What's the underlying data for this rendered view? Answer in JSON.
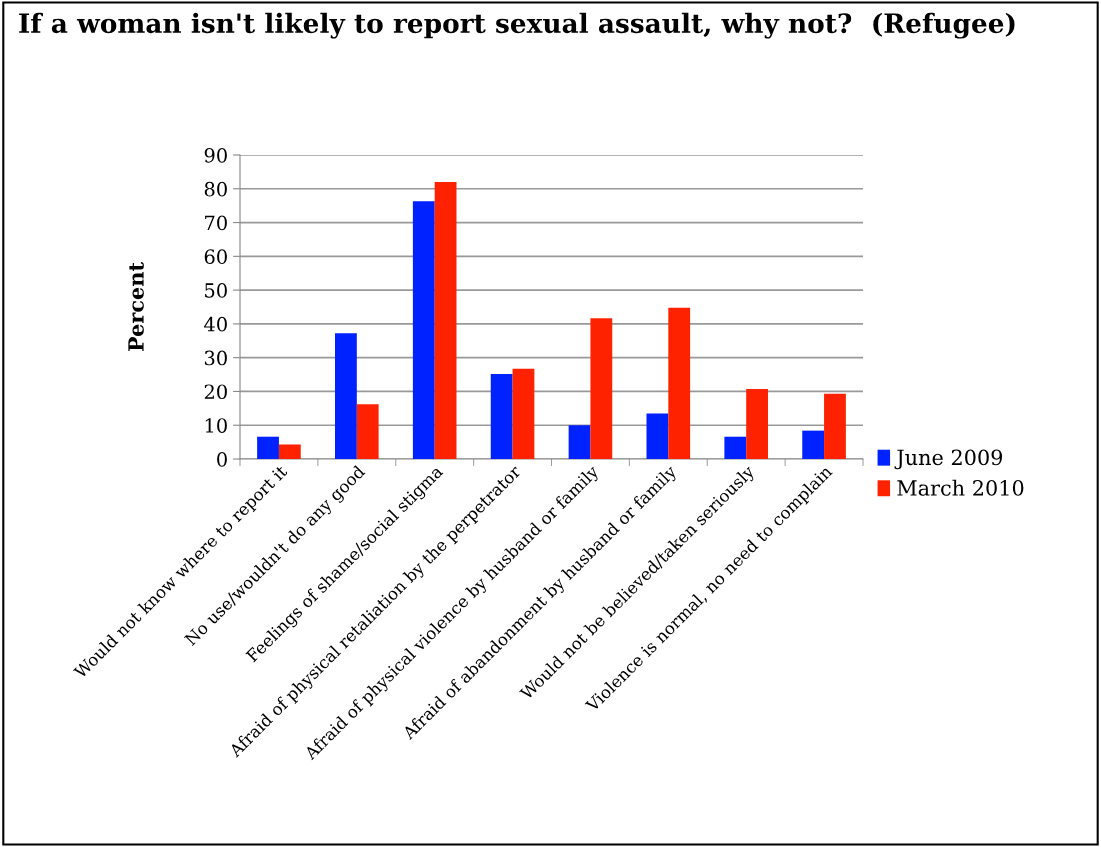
{
  "chart_data": {
    "type": "bar",
    "title": "If a woman isn't likely to report sexual assault, why not?  (Refugee)",
    "ylabel": "Percent",
    "categories": [
      "Would not know where to report it",
      "No use/wouldn't do any good",
      "Feelings of shame/social stigma",
      "Afraid of physical retaliation by the perpetrator",
      "Afraid of physical violence by husband or family",
      "Afraid of abandonment by husband or family",
      "Would not be believed/taken seriously",
      "Violence is normal, no need to complain"
    ],
    "series": [
      {
        "name": "June 2009",
        "color": "#0022ff",
        "values": [
          6.6,
          37.2,
          76.3,
          25.2,
          10.0,
          13.5,
          6.6,
          8.4
        ]
      },
      {
        "name": "March 2010",
        "color": "#ff2200",
        "values": [
          4.3,
          16.2,
          82.0,
          26.7,
          41.7,
          44.8,
          20.7,
          19.3
        ]
      }
    ],
    "ylim": [
      0,
      90
    ],
    "yticks": [
      0,
      10,
      20,
      30,
      40,
      50,
      60,
      70,
      80,
      90
    ],
    "grid": "y",
    "legend": "right"
  }
}
